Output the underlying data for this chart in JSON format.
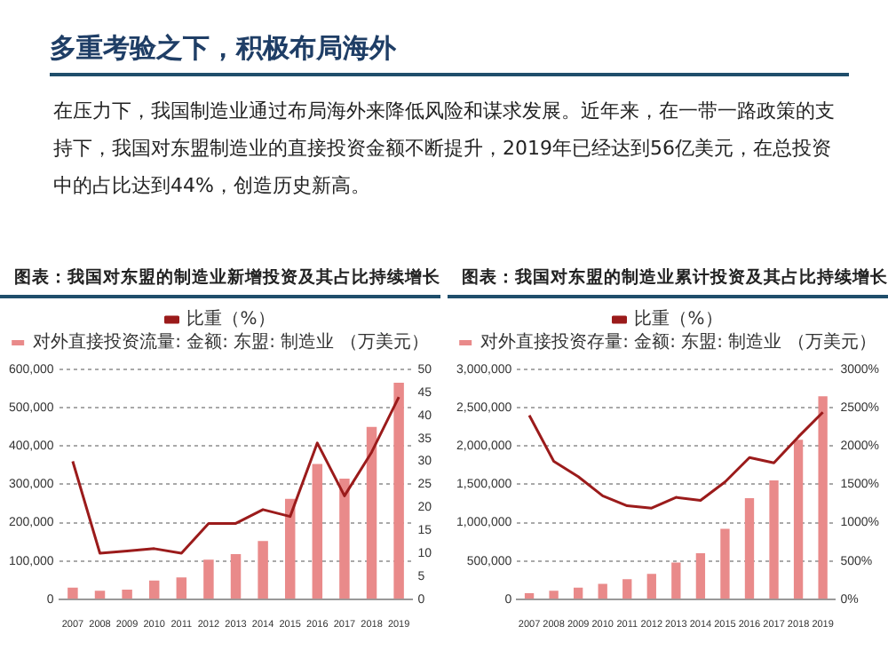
{
  "chart_data": [
    {
      "type": "bar",
      "title": "图表：我国对东盟的制造业新增投资及其占比持续增长",
      "annotations": [
        "多重考验之下，积极布局海外",
        "在压力下，我国制造业通过布局海外来降低风险和谋求发展。近年来，在一带一路政策的支持下，我国对东盟制造业的直接投资金额不断提升，2019年已经达到56亿美元，在总投资中的占比达到44%，创造历史新高。"
      ],
      "categories": [
        "2007",
        "2008",
        "2009",
        "2010",
        "2011",
        "2012",
        "2013",
        "2014",
        "2015",
        "2016",
        "2017",
        "2018",
        "2019"
      ],
      "series": [
        {
          "name": "对外直接投资流量: 金额: 东盟: 制造业 （万美元）",
          "color": "#e98a8a",
          "values": [
            30000,
            22000,
            25000,
            49000,
            57000,
            103000,
            118000,
            152000,
            262000,
            353000,
            315000,
            450000,
            565000
          ]
        },
        {
          "name": "比重（%）",
          "type": "line",
          "axis": "y2",
          "color": "#9b1b1b",
          "values": [
            30,
            10,
            10.5,
            11,
            10,
            16.5,
            16.5,
            19.5,
            18,
            34,
            22.5,
            32,
            44
          ]
        }
      ],
      "ylim": [
        0,
        600000
      ],
      "yticks": [
        {
          "value": 0,
          "label": "0"
        },
        {
          "value": 100000,
          "label": "100,000"
        },
        {
          "value": 200000,
          "label": "200,000"
        },
        {
          "value": 300000,
          "label": "300,000"
        },
        {
          "value": 400000,
          "label": "400,000"
        },
        {
          "value": 500000,
          "label": "500,000"
        },
        {
          "value": 600000,
          "label": "600,000"
        }
      ],
      "y2lim": [
        0,
        50
      ],
      "y2ticks": [
        0,
        5,
        10,
        15,
        20,
        25,
        30,
        35,
        40,
        45,
        50
      ],
      "grid": "y",
      "legend": "top"
    },
    {
      "type": "bar",
      "title": "图表：我国对东盟的制造业累计投资及其占比持续增长",
      "categories": [
        "2007",
        "2008",
        "2009",
        "2010",
        "2011",
        "2012",
        "2013",
        "2014",
        "2015",
        "2016",
        "2017",
        "2018",
        "2019"
      ],
      "series": [
        {
          "name": "对外直接投资存量: 金额: 东盟: 制造业 （万美元）",
          "color": "#e98a8a",
          "values": [
            80000,
            110000,
            150000,
            200000,
            260000,
            330000,
            480000,
            600000,
            920000,
            1320000,
            1550000,
            2080000,
            2650000
          ]
        },
        {
          "name": "比重（%）",
          "type": "line",
          "axis": "y2",
          "color": "#9b1b1b",
          "values": [
            2400,
            1800,
            1600,
            1350,
            1220,
            1190,
            1330,
            1290,
            1530,
            1850,
            1780,
            2120,
            2440
          ]
        }
      ],
      "ylim": [
        0,
        3000000
      ],
      "yticks": [
        {
          "value": 0,
          "label": "0"
        },
        {
          "value": 500000,
          "label": "500,000"
        },
        {
          "value": 1000000,
          "label": "1,000,000"
        },
        {
          "value": 1500000,
          "label": "1,500,000"
        },
        {
          "value": 2000000,
          "label": "2,000,000"
        },
        {
          "value": 2500000,
          "label": "2,500,000"
        },
        {
          "value": 3000000,
          "label": "3,000,000"
        }
      ],
      "y2lim": [
        0,
        3000
      ],
      "y2ticks": [
        {
          "value": 0,
          "label": "0%"
        },
        {
          "value": 500,
          "label": "500%"
        },
        {
          "value": 1000,
          "label": "1000%"
        },
        {
          "value": 1500,
          "label": "1500%"
        },
        {
          "value": 2000,
          "label": "2000%"
        },
        {
          "value": 2500,
          "label": "2500%"
        },
        {
          "value": 3000,
          "label": "3000%"
        }
      ],
      "grid": "y",
      "legend": "top"
    }
  ]
}
